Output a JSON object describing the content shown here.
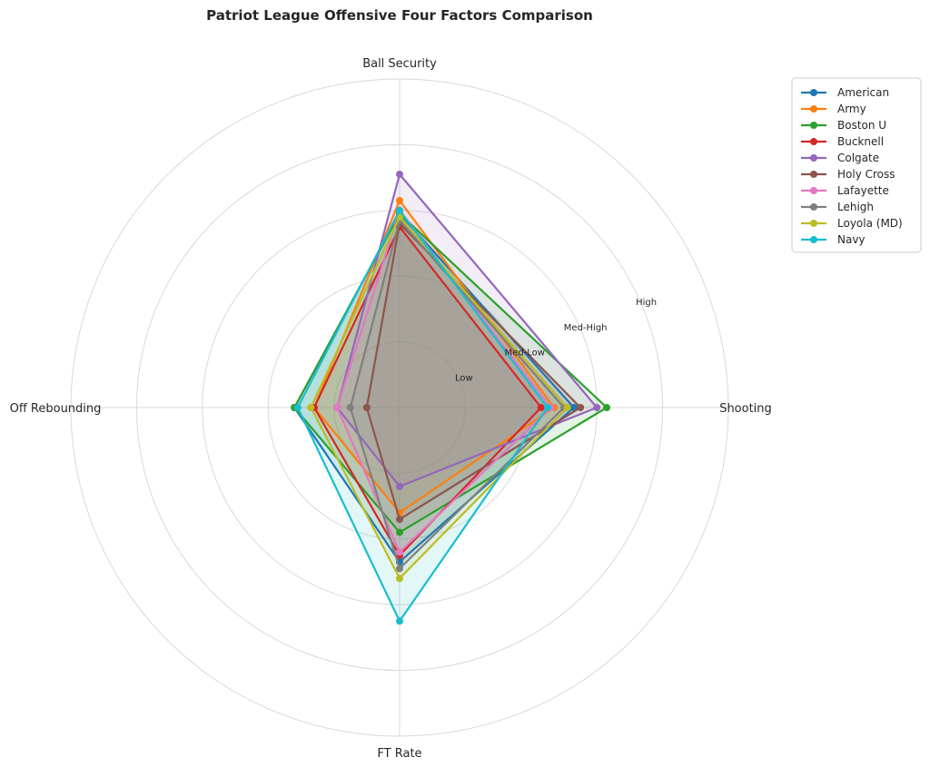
{
  "chart_data": {
    "type": "radar",
    "title": "Patriot League Offensive Four Factors Comparison",
    "axes": [
      "Shooting",
      "Ball Security",
      "Off Rebounding",
      "FT Rate"
    ],
    "rings": {
      "levels": [
        0.2,
        0.4,
        0.6,
        0.8,
        1.0
      ],
      "labels": [
        "Low",
        "Med-Low",
        "Med-High",
        "High",
        ""
      ]
    },
    "range": [
      0,
      1
    ],
    "grid": true,
    "legend_position": "top-right outside",
    "series": [
      {
        "name": "American",
        "color": "#1f77b4",
        "values": [
          0.53,
          0.59,
          0.32,
          0.47
        ]
      },
      {
        "name": "Army",
        "color": "#ff7f0e",
        "values": [
          0.47,
          0.63,
          0.26,
          0.32
        ]
      },
      {
        "name": "Boston U",
        "color": "#2ca02c",
        "values": [
          0.63,
          0.59,
          0.32,
          0.38
        ]
      },
      {
        "name": "Bucknell",
        "color": "#d62728",
        "values": [
          0.43,
          0.55,
          0.26,
          0.45
        ]
      },
      {
        "name": "Colgate",
        "color": "#9467bd",
        "values": [
          0.6,
          0.71,
          0.19,
          0.24
        ]
      },
      {
        "name": "Holy Cross",
        "color": "#8c564b",
        "values": [
          0.55,
          0.56,
          0.1,
          0.34
        ]
      },
      {
        "name": "Lafayette",
        "color": "#e377c2",
        "values": [
          0.46,
          0.6,
          0.19,
          0.44
        ]
      },
      {
        "name": "Lehigh",
        "color": "#7f7f7f",
        "values": [
          0.5,
          0.57,
          0.15,
          0.49
        ]
      },
      {
        "name": "Loyola (MD)",
        "color": "#bcbd22",
        "values": [
          0.51,
          0.58,
          0.27,
          0.52
        ]
      },
      {
        "name": "Navy",
        "color": "#17becf",
        "values": [
          0.45,
          0.6,
          0.31,
          0.65
        ]
      }
    ]
  }
}
